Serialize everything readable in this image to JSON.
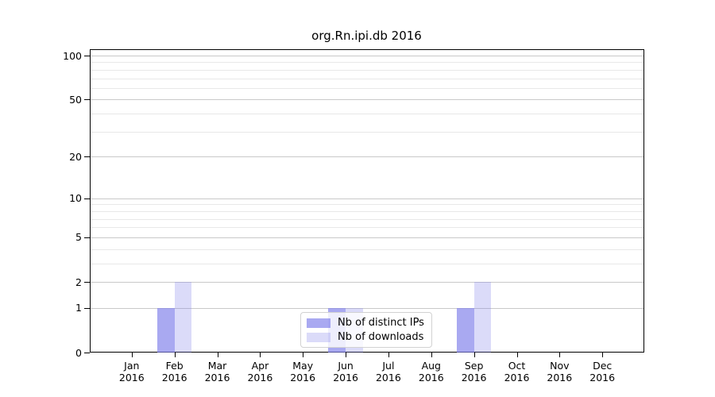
{
  "title": "org.Rn.ipi.db 2016",
  "chart_data": {
    "type": "bar",
    "title": "org.Rn.ipi.db 2016",
    "categories": [
      "Jan",
      "Feb",
      "Mar",
      "Apr",
      "May",
      "Jun",
      "Jul",
      "Aug",
      "Sep",
      "Oct",
      "Nov",
      "Dec"
    ],
    "category_year": "2016",
    "series": [
      {
        "name": "Nb of distinct IPs",
        "color": "rgba(124,124,233,0.66)",
        "values": [
          0,
          1,
          0,
          0,
          0,
          1,
          0,
          0,
          1,
          0,
          0,
          0
        ]
      },
      {
        "name": "Nb of downloads",
        "color": "rgba(124,124,233,0.28)",
        "values": [
          0,
          2,
          0,
          0,
          0,
          1,
          0,
          0,
          2,
          0,
          0,
          0
        ]
      }
    ],
    "xlabel": "",
    "ylabel": "",
    "yscale": "log1p",
    "ylim": [
      0,
      112
    ],
    "yticks": [
      0,
      1,
      2,
      5,
      10,
      20,
      50,
      100
    ],
    "grid_minor_values": [
      3,
      4,
      6,
      7,
      8,
      9,
      30,
      40,
      60,
      70,
      80,
      90
    ],
    "grid": "horizontal major+minor",
    "legend_position": "lower center"
  },
  "colors": {
    "bar_base": "#7c7ce9",
    "grid_major": "#c9c9c9",
    "grid_minor": "#e8e8e8",
    "spine": "#000000",
    "background": "#ffffff"
  }
}
